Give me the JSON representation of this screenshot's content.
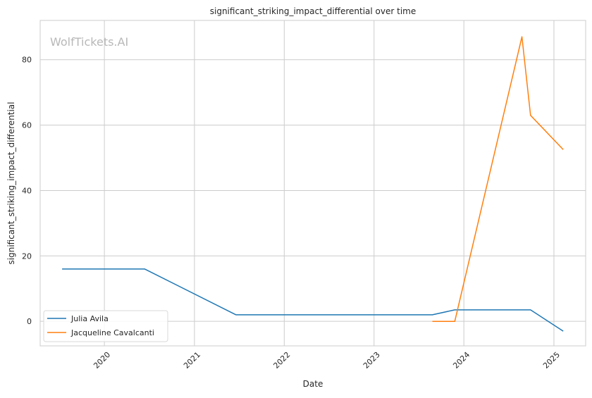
{
  "chart_data": {
    "type": "line",
    "title": "significant_striking_impact_differential over time",
    "xlabel": "Date",
    "ylabel": "significant_striking_impact_differential",
    "watermark": "WolfTickets.AI",
    "xlim": [
      "2019-04-15",
      "2025-05-10"
    ],
    "ylim": [
      -7.5,
      92
    ],
    "x_ticks": [
      "2020",
      "2021",
      "2022",
      "2023",
      "2024",
      "2025"
    ],
    "y_ticks": [
      0,
      20,
      40,
      60,
      80
    ],
    "grid": true,
    "legend_position": "lower-left",
    "series": [
      {
        "name": "Julia Avila",
        "color": "#1f77b4",
        "points": [
          {
            "x": "2019-07-13",
            "y": 16
          },
          {
            "x": "2020-06-13",
            "y": 16
          },
          {
            "x": "2021-06-19",
            "y": 2
          },
          {
            "x": "2023-08-26",
            "y": 2
          },
          {
            "x": "2023-11-25",
            "y": 3.5
          },
          {
            "x": "2024-09-28",
            "y": 3.5
          },
          {
            "x": "2025-02-08",
            "y": -3
          }
        ]
      },
      {
        "name": "Jacqueline Cavalcanti",
        "color": "#ff7f0e",
        "points": [
          {
            "x": "2023-08-26",
            "y": 0
          },
          {
            "x": "2023-11-25",
            "y": 0
          },
          {
            "x": "2024-08-24",
            "y": 87
          },
          {
            "x": "2024-09-28",
            "y": 63
          },
          {
            "x": "2025-02-08",
            "y": 52.5
          }
        ]
      }
    ]
  }
}
